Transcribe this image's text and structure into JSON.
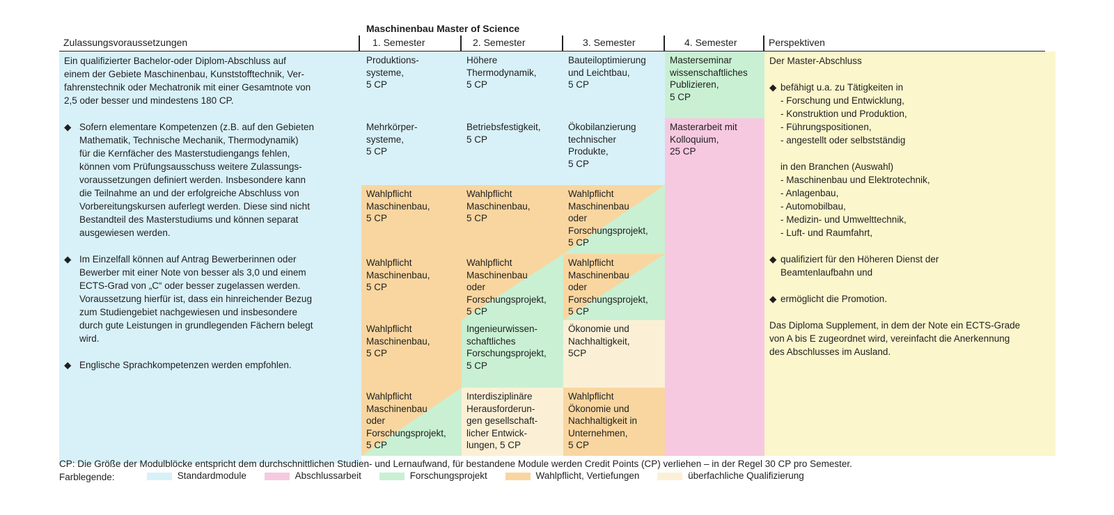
{
  "header": {
    "title": "Maschinenbau Master of Science",
    "admission": "Zulassungsvoraussetzungen",
    "sem1": "1. Semester",
    "sem2": "2. Semester",
    "sem3": "3. Semester",
    "sem4": "4. Semester",
    "perspectives": "Perspektiven"
  },
  "admission": {
    "intro": [
      "Ein qualifizierter Bachelor-oder Diplom-Abschluss auf",
      "einem der Gebiete Maschinenbau, Kunststofftechnik, Ver-",
      "fahrenstechnik oder Mechatronik mit einer Gesamtnote von",
      "2,5 oder besser und mindestens 180 CP."
    ],
    "bullet1": [
      "Sofern elementare Kompetenzen (z.B. auf den Gebieten",
      "Mathematik, Technische Mechanik, Thermodynamik)",
      "für die Kernfächer des Masterstudiengangs fehlen,",
      "können vom Prüfungsausschuss weitere Zulassungs-",
      "voraussetzungen definiert werden. Insbesondere kann",
      "die Teilnahme an und der erfolgreiche Abschluss von",
      "Vorbereitungskursen auferlegt werden. Diese sind nicht",
      "Bestandteil des Masterstudiums und können separat",
      "ausgewiesen werden."
    ],
    "bullet2": [
      "Im Einzelfall können auf Antrag Bewerberinnen oder",
      "Bewerber mit einer Note von besser als 3,0 und einem",
      "ECTS-Grad von „C“ oder besser zugelassen werden.",
      "Voraussetzung hierfür ist, dass ein hinreichender Bezug",
      "zum Studiengebiet nachgewiesen und insbesondere",
      "durch gute Leistungen in grundlegenden Fächern belegt",
      "wird."
    ],
    "bullet3": [
      "Englische Sprachkompetenzen werden empfohlen."
    ]
  },
  "sem1": [
    [
      "Produktions-",
      "systeme,",
      "5 CP"
    ],
    [
      "Mehrkörper-",
      "systeme,",
      "5 CP"
    ],
    [
      "Wahlpflicht",
      "Maschinenbau,",
      "5 CP"
    ],
    [
      "Wahlpflicht",
      "Maschinenbau,",
      "5 CP"
    ],
    [
      "Wahlpflicht",
      "Maschinenbau,",
      "5 CP"
    ],
    [
      "Wahlpflicht",
      "Maschinenbau",
      "oder",
      "Forschungsprojekt,",
      "5 CP"
    ]
  ],
  "sem2": [
    [
      "Höhere",
      "Thermodynamik,",
      "5 CP"
    ],
    [
      "Betriebsfestigkeit,",
      "5 CP"
    ],
    [
      "Wahlpflicht",
      "Maschinenbau,",
      "5 CP"
    ],
    [
      "Wahlpflicht",
      "Maschinenbau",
      "oder",
      "Forschungsprojekt,",
      "5 CP"
    ],
    [
      "Ingenieurwissen-",
      "schaftliches",
      "Forschungsprojekt,",
      "5 CP"
    ],
    [
      "Interdisziplinäre",
      "Herausforderun-",
      "gen gesellschaft-",
      "licher Entwick-",
      "lungen, 5 CP"
    ]
  ],
  "sem3": [
    [
      "Bauteiloptimierung",
      "und Leichtbau,",
      "5 CP"
    ],
    [
      "Ökobilanzierung",
      "technischer",
      "Produkte,",
      "5 CP"
    ],
    [
      "Wahlpflicht",
      "Maschinenbau",
      "oder",
      "Forschungsprojekt,",
      "5 CP"
    ],
    [
      "Wahlpflicht",
      "Maschinenbau",
      "oder",
      "Forschungsprojekt,",
      "5 CP"
    ],
    [
      "Ökonomie und",
      "Nachhaltigkeit,",
      "5CP"
    ],
    [
      "Wahlpflicht",
      "Ökonomie und",
      "Nachhaltigkeit in",
      "Unternehmen,",
      "5 CP"
    ]
  ],
  "sem4": [
    [
      "Masterseminar",
      "wissenschaftliches",
      "Publizieren,",
      "5 CP"
    ],
    [
      "Masterarbeit mit",
      "Kolloquium,",
      "25 CP"
    ]
  ],
  "perspectives": {
    "intro": "Der Master-Abschluss",
    "bullet1": "befähigt u.a. zu Tätigkeiten in",
    "activities": [
      "- Forschung und Entwicklung,",
      "- Konstruktion und Produktion,",
      "- Führungspositionen,",
      "- angestellt oder selbstständig"
    ],
    "branches_label": "in den Branchen (Auswahl)",
    "branches": [
      "- Maschinenbau und Elektrotechnik,",
      "- Anlagenbau,",
      "- Automobilbau,",
      "- Medizin- und Umwelttechnik,",
      "- Luft- und Raumfahrt,"
    ],
    "bullet2": [
      "qualifiziert für den Höheren Dienst der",
      "Beamtenlaufbahn und"
    ],
    "bullet3": "ermöglicht die Promotion.",
    "outro": [
      "Das Diploma Supplement, in dem der Note ein ECTS-Grade",
      "von A bis E zugeordnet wird, vereinfacht die Anerkennung",
      "des Abschlusses im Ausland."
    ]
  },
  "footer": {
    "note": "CP: Die Größe der Modulblöcke entspricht dem durchschnittlichen Studien- und Lernaufwand, für bestandene Module werden Credit Points (CP) verliehen – in der Regel 30 CP pro Semester.",
    "legend_label": "Farblegende:",
    "legend": [
      {
        "label": "Standardmodule",
        "color": "#d8f1f8"
      },
      {
        "label": "Abschlussarbeit",
        "color": "#f7c9e0"
      },
      {
        "label": "Forschungsprojekt",
        "color": "#c9f0d3"
      },
      {
        "label": "Wahlpflicht, Vertiefungen",
        "color": "#f9d6a0"
      },
      {
        "label": "überfachliche Qualifizierung",
        "color": "#fbf0d6"
      }
    ]
  }
}
